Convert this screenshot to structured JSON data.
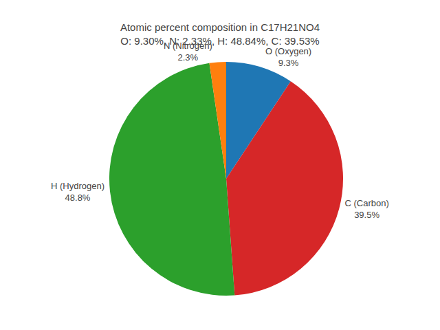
{
  "chart_data": {
    "type": "pie",
    "title": "Atomic percent composition in C17H21NO4",
    "subtitle": "O: 9.30%, N: 2.33%, H: 48.84%, C: 39.53%",
    "categories": [
      "O (Oxygen)",
      "C (Carbon)",
      "H (Hydrogen)",
      "N (Nitrogen)"
    ],
    "values": [
      9.3,
      39.5,
      48.8,
      2.3
    ],
    "value_labels": [
      "9.3%",
      "39.5%",
      "48.8%",
      "2.3%"
    ],
    "colors": [
      "#1f77b4",
      "#d62728",
      "#2ca02c",
      "#ff7f0e"
    ],
    "data_labels": true
  }
}
